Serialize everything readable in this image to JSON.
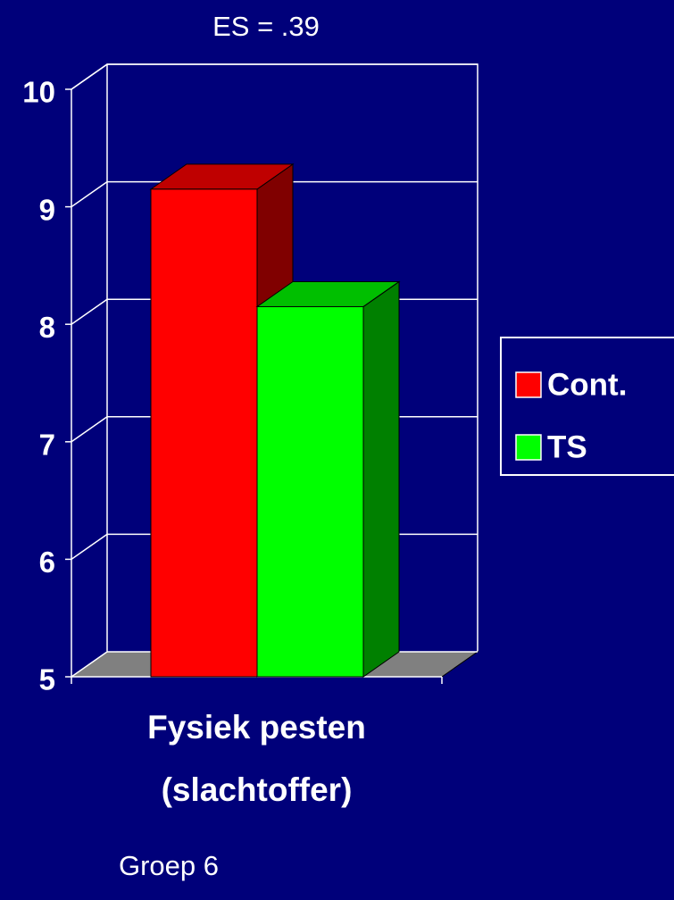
{
  "chart_data": {
    "type": "bar3d",
    "title": "ES = .39",
    "categories": [
      "Fysiek pesten\n(slachtoffer)"
    ],
    "series": [
      {
        "name": "Cont.",
        "color": "#ff0000",
        "values": [
          9.15
        ]
      },
      {
        "name": "TS",
        "color": "#00ff00",
        "values": [
          8.15
        ]
      }
    ],
    "ylim": [
      5,
      10
    ],
    "yticks": [
      5,
      6,
      7,
      8,
      9,
      10
    ],
    "grid": true,
    "legend": "right",
    "annotation": "Groep 6"
  }
}
